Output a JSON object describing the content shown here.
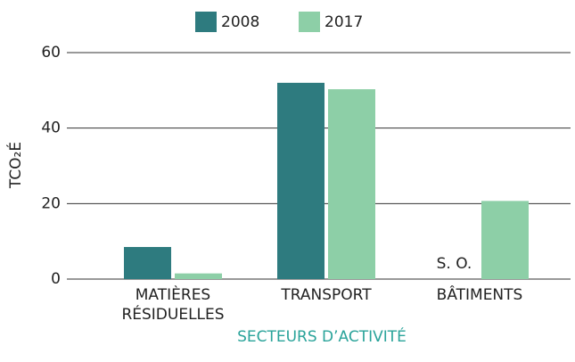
{
  "chart_data": {
    "type": "bar",
    "categories": [
      "MATIÈRES RÉSIDUELLES",
      "TRANSPORT",
      "BÂTIMENTS"
    ],
    "series": [
      {
        "name": "2008",
        "color": "#2e7b7f",
        "values": [
          8.5,
          52,
          null
        ]
      },
      {
        "name": "2017",
        "color": "#8dcfa7",
        "values": [
          1.5,
          50.3,
          20.7
        ]
      }
    ],
    "annotation": "S. O.",
    "ylabel": "TCO₂É",
    "xlabel": "SECTEURS D’ACTIVITÉ",
    "ylim": [
      0,
      60
    ],
    "yticks": [
      0,
      20,
      40,
      60
    ],
    "grid": true
  }
}
